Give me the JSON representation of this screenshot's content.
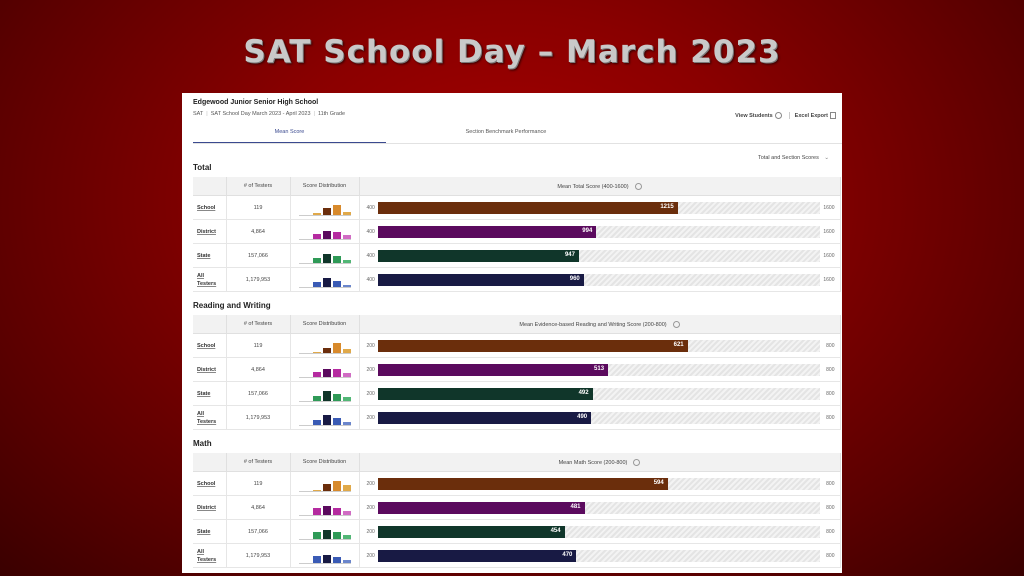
{
  "slide": {
    "title": "SAT School Day – March 2023"
  },
  "header": {
    "school": "Edgewood Junior Senior High School",
    "assessment": "SAT",
    "administration": "SAT School Day March 2023 - April 2023",
    "grade": "11th Grade",
    "view_students": "View Students",
    "excel_export": "Excel Export"
  },
  "tabs": [
    {
      "label": "Mean Score",
      "active": true
    },
    {
      "label": "Section Benchmark Performance",
      "active": false
    }
  ],
  "dropdown": {
    "label": "Total and Section Scores"
  },
  "colors": {
    "School": "#6b2e0c",
    "District": "#5b0a5e",
    "State": "#10362a",
    "All Testers": "#181a44"
  },
  "dist_colors": {
    "School": [
      "#e0a94a",
      "#6b2e0c",
      "#d88a2c",
      "#e0a94a"
    ],
    "District": [
      "#b52ba0",
      "#5b0a5e",
      "#b52ba0",
      "#d16cc4"
    ],
    "State": [
      "#2f9a57",
      "#10362a",
      "#2f9a57",
      "#52b776"
    ],
    "All Testers": [
      "#3a5bb5",
      "#181a44",
      "#3a5bb5",
      "#6b86cc"
    ]
  },
  "columns": {
    "testers": "# of Testers",
    "distribution": "Score Distribution"
  },
  "sections": [
    {
      "title": "Total",
      "bar_header": "Mean Total Score (400-1600)",
      "min": 400,
      "max": 1600,
      "rows": [
        {
          "group": "School",
          "testers": "119",
          "score": 1215,
          "dist": [
            0.15,
            0.55,
            0.8,
            0.25
          ]
        },
        {
          "group": "District",
          "testers": "4,864",
          "score": 994,
          "dist": [
            0.45,
            0.7,
            0.6,
            0.3
          ]
        },
        {
          "group": "State",
          "testers": "157,066",
          "score": 947,
          "dist": [
            0.4,
            0.75,
            0.55,
            0.25
          ]
        },
        {
          "group": "All Testers",
          "testers": "1,179,953",
          "score": 960,
          "dist": [
            0.4,
            0.75,
            0.5,
            0.2
          ]
        }
      ]
    },
    {
      "title": "Reading and Writing",
      "bar_header": "Mean Evidence-based Reading and Writing Score (200-800)",
      "min": 200,
      "max": 800,
      "rows": [
        {
          "group": "School",
          "testers": "119",
          "score": 621,
          "dist": [
            0.1,
            0.45,
            0.85,
            0.35
          ]
        },
        {
          "group": "District",
          "testers": "4,864",
          "score": 513,
          "dist": [
            0.45,
            0.7,
            0.65,
            0.3
          ]
        },
        {
          "group": "State",
          "testers": "157,066",
          "score": 492,
          "dist": [
            0.45,
            0.8,
            0.55,
            0.3
          ]
        },
        {
          "group": "All Testers",
          "testers": "1,179,953",
          "score": 490,
          "dist": [
            0.45,
            0.8,
            0.55,
            0.25
          ]
        }
      ]
    },
    {
      "title": "Math",
      "bar_header": "Mean Math Score (200-800)",
      "min": 200,
      "max": 800,
      "rows": [
        {
          "group": "School",
          "testers": "119",
          "score": 594,
          "dist": [
            0.1,
            0.55,
            0.85,
            0.5
          ]
        },
        {
          "group": "District",
          "testers": "4,864",
          "score": 481,
          "dist": [
            0.6,
            0.75,
            0.55,
            0.3
          ]
        },
        {
          "group": "State",
          "testers": "157,066",
          "score": 454,
          "dist": [
            0.6,
            0.75,
            0.55,
            0.3
          ]
        },
        {
          "group": "All Testers",
          "testers": "1,179,953",
          "score": 470,
          "dist": [
            0.55,
            0.7,
            0.5,
            0.25
          ]
        }
      ]
    }
  ]
}
